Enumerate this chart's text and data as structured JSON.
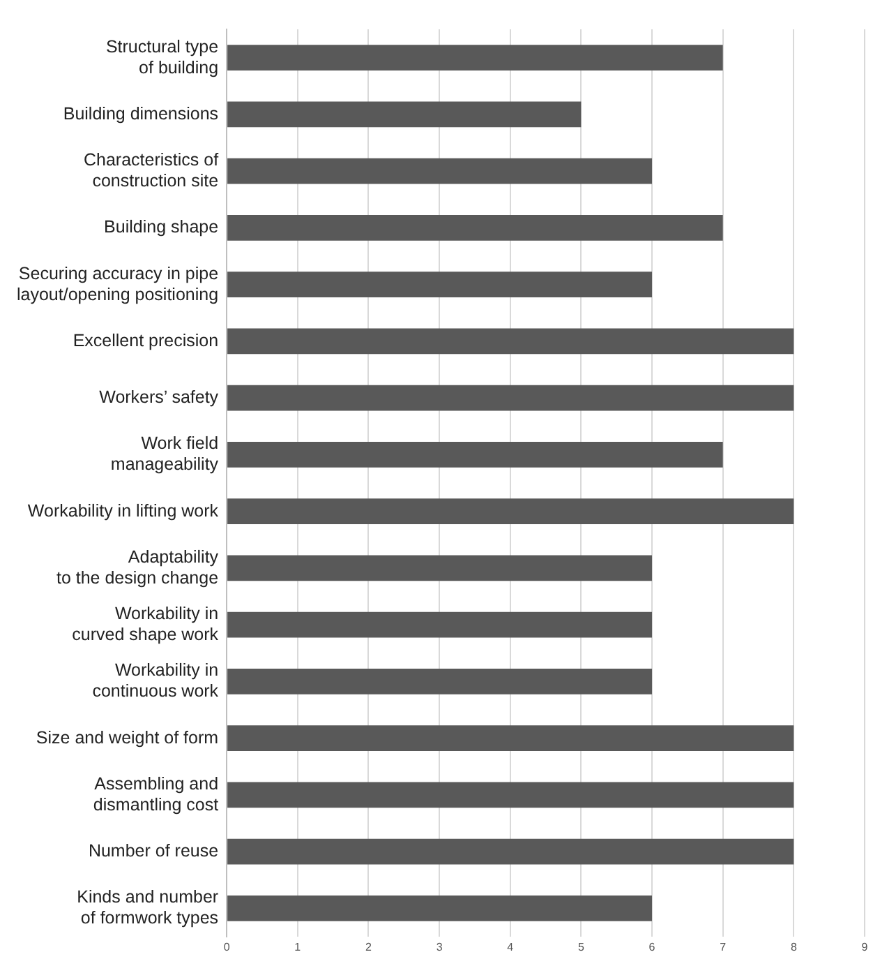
{
  "chart_data": {
    "type": "bar",
    "orientation": "horizontal",
    "categories": [
      "Structural type\nof building",
      "Building dimensions",
      "Characteristics of\nconstruction site",
      "Building shape",
      "Securing accuracy in pipe\nlayout/opening positioning",
      "Excellent precision",
      "Workers’ safety",
      "Work field\nmanageability",
      "Workability in lifting work",
      "Adaptability\nto the design change",
      "Workability in\ncurved shape work",
      "Workability in\ncontinuous work",
      "Size and weight of form",
      "Assembling and\ndismantling cost",
      "Number of reuse",
      "Kinds and number\nof formwork types"
    ],
    "values": [
      7,
      5,
      6,
      7,
      6,
      8,
      8,
      7,
      8,
      6,
      6,
      6,
      8,
      8,
      8,
      6
    ],
    "color": "#595959",
    "xlim": [
      0,
      9
    ],
    "xticks": [
      0,
      1,
      2,
      3,
      4,
      5,
      6,
      7,
      8,
      9
    ],
    "grid": "x",
    "legend": false
  }
}
